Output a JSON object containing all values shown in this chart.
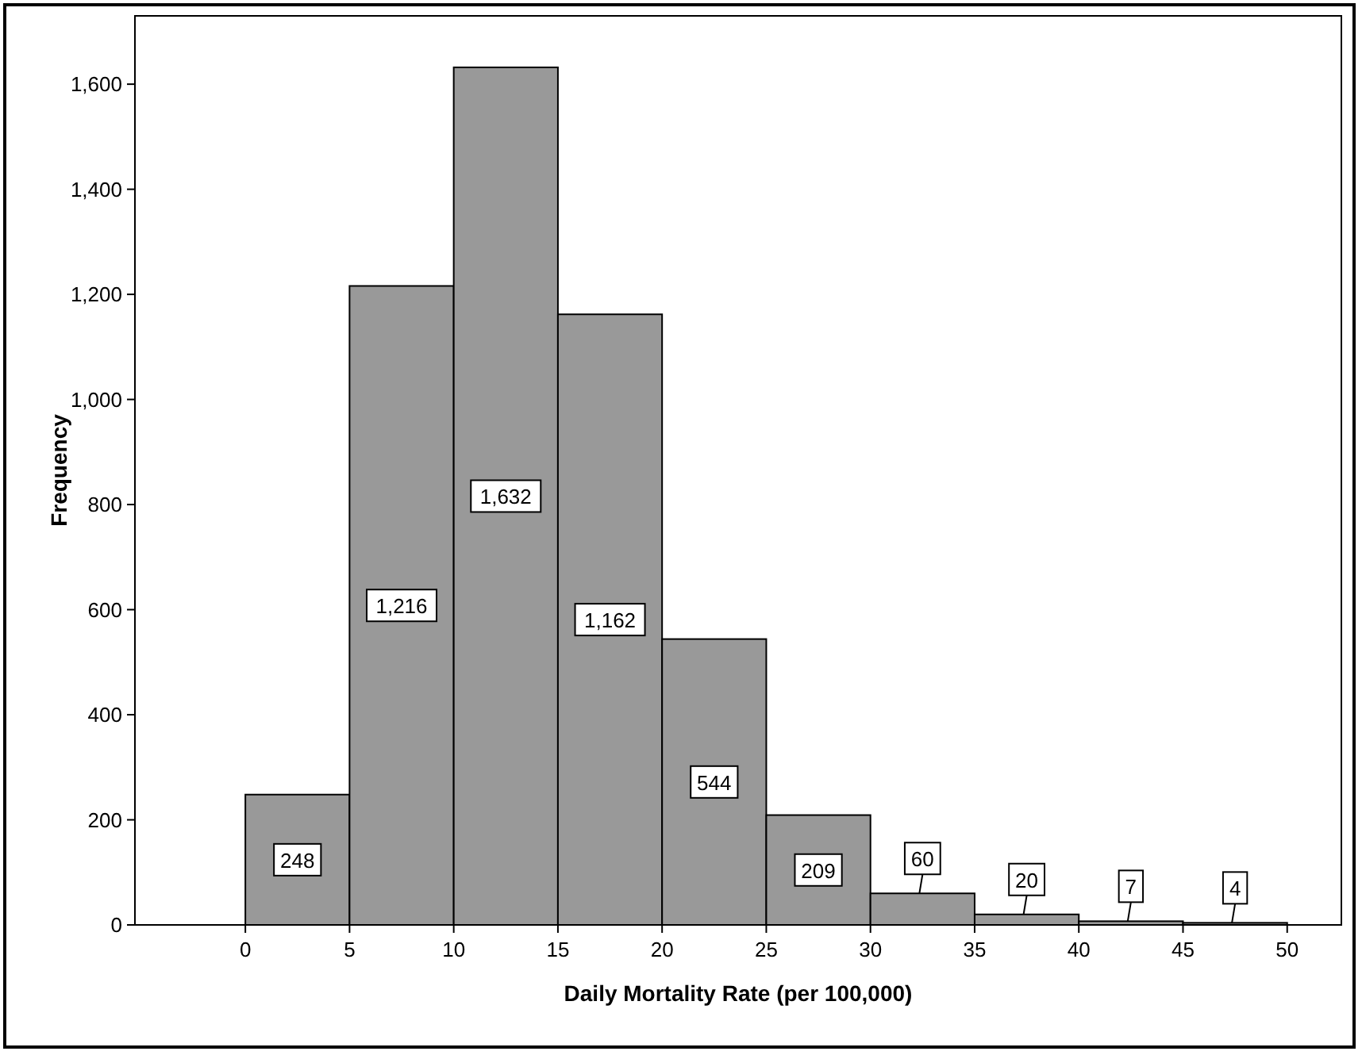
{
  "chart_data": {
    "type": "histogram",
    "xlabel": "Daily Mortality Rate (per 100,000)",
    "ylabel": "Frequency",
    "bins": [
      0,
      5,
      10,
      15,
      20,
      25,
      30,
      35,
      40,
      45,
      50
    ],
    "values": [
      248,
      1216,
      1632,
      1162,
      544,
      209,
      60,
      20,
      7,
      4
    ],
    "color": "#999999",
    "xlim": [
      -5.3,
      52.6
    ],
    "xticks": [
      0,
      5,
      10,
      15,
      20,
      25,
      30,
      35,
      40,
      45,
      50
    ],
    "ylim": [
      0,
      1730
    ],
    "yticks": [
      0,
      200,
      400,
      600,
      800,
      {
        "value": 1000,
        "label": "1,000"
      },
      {
        "value": 1200,
        "label": "1,200"
      },
      {
        "value": 1400,
        "label": "1,400"
      },
      {
        "value": 1600,
        "label": "1,600"
      }
    ],
    "value_labels": [
      "248",
      "1,216",
      "1,632",
      "1,162",
      "544",
      "209",
      "60",
      "20",
      "7",
      "4"
    ],
    "grid": false
  }
}
